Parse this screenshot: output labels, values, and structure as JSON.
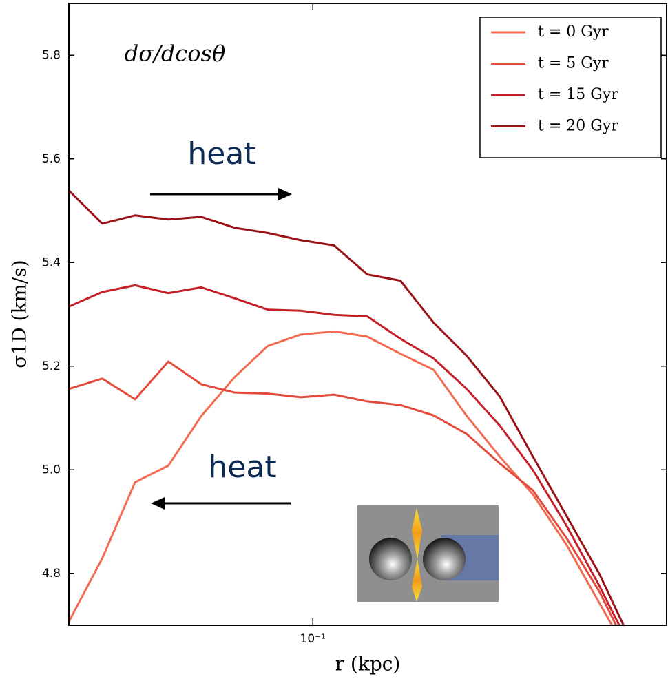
{
  "chart_data": {
    "type": "line",
    "annotations": [
      "dσ/dcosθ",
      "heat",
      "heat"
    ],
    "xlabel": "r (kpc)",
    "ylabel": "σ1D (km/s)",
    "x": [
      0.036,
      0.0414,
      0.0475,
      0.0546,
      0.0627,
      0.0721,
      0.0828,
      0.0951,
      0.1093,
      0.1256,
      0.1443,
      0.1658,
      0.1905,
      0.2189,
      0.2515,
      0.289,
      0.332,
      0.3815
    ],
    "series": [
      {
        "name": "t = 0  Gyr",
        "color": "#f26b50",
        "values": [
          4.707,
          4.829,
          4.976,
          5.008,
          5.104,
          5.179,
          5.239,
          5.261,
          5.267,
          5.257,
          5.224,
          5.193,
          5.104,
          5.025,
          4.952,
          4.856,
          4.743,
          4.63
        ]
      },
      {
        "name": "t = 5  Gyr",
        "color": "#e34a3b",
        "values": [
          5.156,
          5.176,
          5.136,
          5.209,
          5.165,
          5.149,
          5.147,
          5.14,
          5.145,
          5.132,
          5.125,
          5.105,
          5.069,
          5.012,
          4.96,
          4.869,
          4.765,
          4.636
        ]
      },
      {
        "name": "t = 15  Gyr",
        "color": "#c51f28",
        "values": [
          5.315,
          5.343,
          5.356,
          5.341,
          5.352,
          5.331,
          5.309,
          5.307,
          5.299,
          5.296,
          5.253,
          5.215,
          5.156,
          5.085,
          4.999,
          4.893,
          4.776,
          4.649
        ]
      },
      {
        "name": "t = 20  Gyr",
        "color": "#9a1116",
        "values": [
          5.539,
          5.475,
          5.491,
          5.483,
          5.488,
          5.467,
          5.457,
          5.443,
          5.433,
          5.377,
          5.365,
          5.284,
          5.22,
          5.141,
          5.025,
          4.912,
          4.799,
          4.663
        ]
      }
    ],
    "xscale": "log",
    "xlim": [
      0.036,
      0.44
    ],
    "xticks": [
      {
        "value": 0.1,
        "label": "10⁻¹"
      }
    ],
    "ylim": [
      4.7,
      5.9
    ],
    "yticks": [
      4.8,
      {
        "value": 5,
        "label": "5.0"
      },
      5.2,
      5.4,
      5.6,
      5.8
    ],
    "legend": "upper right"
  }
}
